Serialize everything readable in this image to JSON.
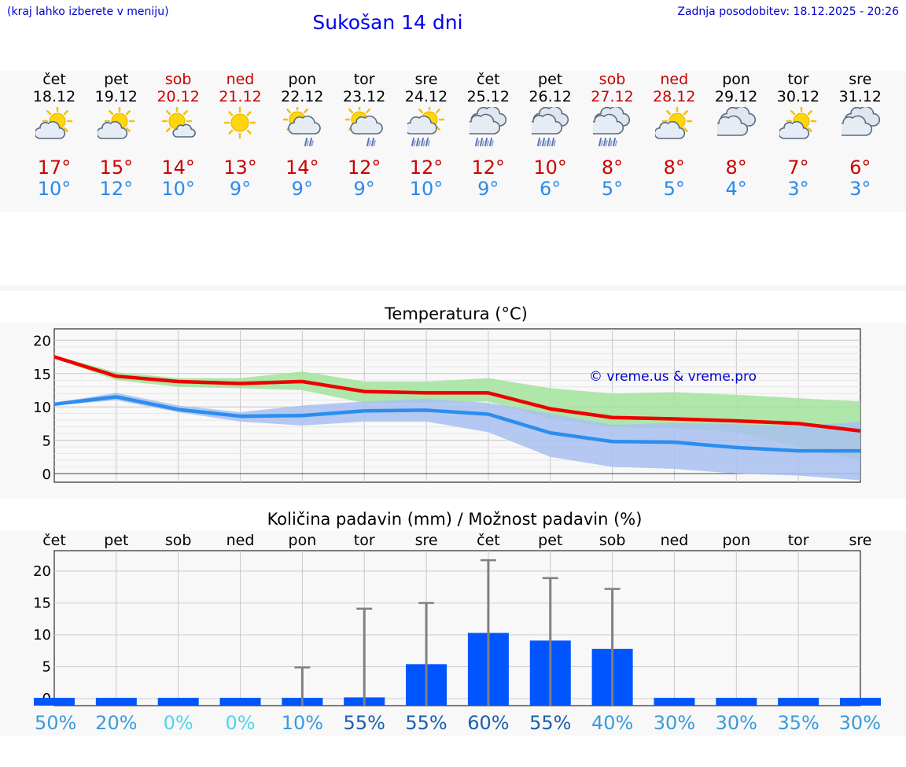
{
  "header": {
    "hint": "(kraj lahko izberete v meniju)",
    "title": "Sukošan 14 dni",
    "updated": "Zadnja posodobitev: 18.12.2025 - 20:26"
  },
  "days": [
    {
      "name": "čet",
      "date": "18.12",
      "weekend": false,
      "icon": "sun-cloud-icon",
      "hi": "17°",
      "lo": "10°"
    },
    {
      "name": "pet",
      "date": "19.12",
      "weekend": false,
      "icon": "sun-cloud-icon",
      "hi": "15°",
      "lo": "12°"
    },
    {
      "name": "sob",
      "date": "20.12",
      "weekend": true,
      "icon": "sun-small-cloud-icon",
      "hi": "14°",
      "lo": "10°"
    },
    {
      "name": "ned",
      "date": "21.12",
      "weekend": true,
      "icon": "sun-icon",
      "hi": "13°",
      "lo": "9°"
    },
    {
      "name": "pon",
      "date": "22.12",
      "weekend": false,
      "icon": "sun-cloud-light-rain-icon",
      "hi": "14°",
      "lo": "9°"
    },
    {
      "name": "tor",
      "date": "23.12",
      "weekend": false,
      "icon": "sun-cloud-light-rain-icon",
      "hi": "12°",
      "lo": "9°"
    },
    {
      "name": "sre",
      "date": "24.12",
      "weekend": false,
      "icon": "sun-cloud-rain-icon",
      "hi": "12°",
      "lo": "10°"
    },
    {
      "name": "čet",
      "date": "25.12",
      "weekend": false,
      "icon": "cloud-rain-icon",
      "hi": "12°",
      "lo": "9°"
    },
    {
      "name": "pet",
      "date": "26.12",
      "weekend": false,
      "icon": "cloud-rain-icon",
      "hi": "10°",
      "lo": "6°"
    },
    {
      "name": "sob",
      "date": "27.12",
      "weekend": true,
      "icon": "cloud-rain-icon",
      "hi": "8°",
      "lo": "5°"
    },
    {
      "name": "ned",
      "date": "28.12",
      "weekend": true,
      "icon": "sun-cloud-icon",
      "hi": "8°",
      "lo": "5°"
    },
    {
      "name": "pon",
      "date": "29.12",
      "weekend": false,
      "icon": "cloud-icon",
      "hi": "8°",
      "lo": "4°"
    },
    {
      "name": "tor",
      "date": "30.12",
      "weekend": false,
      "icon": "sun-cloud-icon",
      "hi": "7°",
      "lo": "3°"
    },
    {
      "name": "sre",
      "date": "31.12",
      "weekend": false,
      "icon": "cloud-icon",
      "hi": "6°",
      "lo": "3°"
    }
  ],
  "colors": {
    "max_line": "#ee0000",
    "min_line": "#2a8ef0",
    "max_band": "#a6e3a0",
    "min_band": "#a8c0f0",
    "overlap_band": "#6cbf94",
    "bar": "#0055ff",
    "whisker": "#808080"
  },
  "chart_data": [
    {
      "type": "line",
      "title": "Temperatura (°C)",
      "watermark": "© vreme.us & vreme.pro",
      "x": [
        0,
        1,
        2,
        3,
        4,
        5,
        6,
        7,
        8,
        9,
        10,
        11,
        12,
        13
      ],
      "yticks": [
        0,
        5,
        10,
        15,
        20
      ],
      "ylim": [
        -1.3,
        21.7
      ],
      "series": [
        {
          "name": "max",
          "values": [
            17.5,
            14.6,
            13.8,
            13.5,
            13.8,
            12.3,
            12.1,
            12.1,
            9.7,
            8.4,
            8.2,
            7.9,
            7.5,
            6.4
          ]
        },
        {
          "name": "min",
          "values": [
            10.4,
            11.5,
            9.6,
            8.6,
            8.7,
            9.4,
            9.5,
            8.9,
            6.1,
            4.8,
            4.7,
            3.9,
            3.4,
            3.4
          ]
        }
      ],
      "bands": [
        {
          "name": "max-range",
          "lower": [
            17.3,
            14.0,
            13.0,
            12.8,
            12.5,
            10.6,
            10.6,
            10.8,
            8.2,
            7.0,
            6.8,
            6.2,
            4.0,
            2.0
          ],
          "upper": [
            17.7,
            15.2,
            14.3,
            14.3,
            15.3,
            13.8,
            13.8,
            14.3,
            12.8,
            12.0,
            12.2,
            11.8,
            11.3,
            10.8
          ]
        },
        {
          "name": "min-range",
          "lower": [
            10.2,
            11.0,
            9.2,
            7.8,
            7.2,
            7.8,
            7.8,
            6.2,
            2.5,
            1.0,
            0.7,
            0.0,
            -0.3,
            -1.0
          ],
          "upper": [
            10.6,
            12.1,
            10.2,
            9.2,
            10.2,
            10.8,
            11.2,
            10.6,
            9.0,
            7.3,
            7.6,
            7.4,
            7.1,
            7.8
          ]
        }
      ]
    },
    {
      "type": "bar",
      "title": "Količina padavin (mm) / Možnost padavin (%)",
      "categories": [
        "čet",
        "pet",
        "sob",
        "ned",
        "pon",
        "tor",
        "sre",
        "čet",
        "pet",
        "sob",
        "ned",
        "pon",
        "tor",
        "sre"
      ],
      "yticks": [
        0,
        5,
        10,
        15,
        20
      ],
      "ylim": [
        -1.1,
        23.2
      ],
      "values": [
        0,
        0,
        0,
        0,
        0.1,
        0.2,
        5.4,
        10.3,
        9.1,
        7.8,
        0,
        0,
        0,
        0
      ],
      "whisker_max": [
        0,
        0,
        0,
        0,
        4.9,
        14.1,
        15.0,
        21.7,
        18.9,
        17.2,
        0,
        0,
        0,
        0
      ],
      "probability": [
        "50%",
        "20%",
        "0%",
        "0%",
        "10%",
        "55%",
        "55%",
        "60%",
        "55%",
        "40%",
        "30%",
        "30%",
        "35%",
        "30%"
      ],
      "probability_colors": [
        "#3a9bd9",
        "#3a9bd9",
        "#4fd4ea",
        "#4fd4ea",
        "#3a9bd9",
        "#1a5fae",
        "#1a5fae",
        "#1a5fae",
        "#1a5fae",
        "#3a9bd9",
        "#3a9bd9",
        "#3a9bd9",
        "#3a9bd9",
        "#3a9bd9"
      ]
    }
  ]
}
